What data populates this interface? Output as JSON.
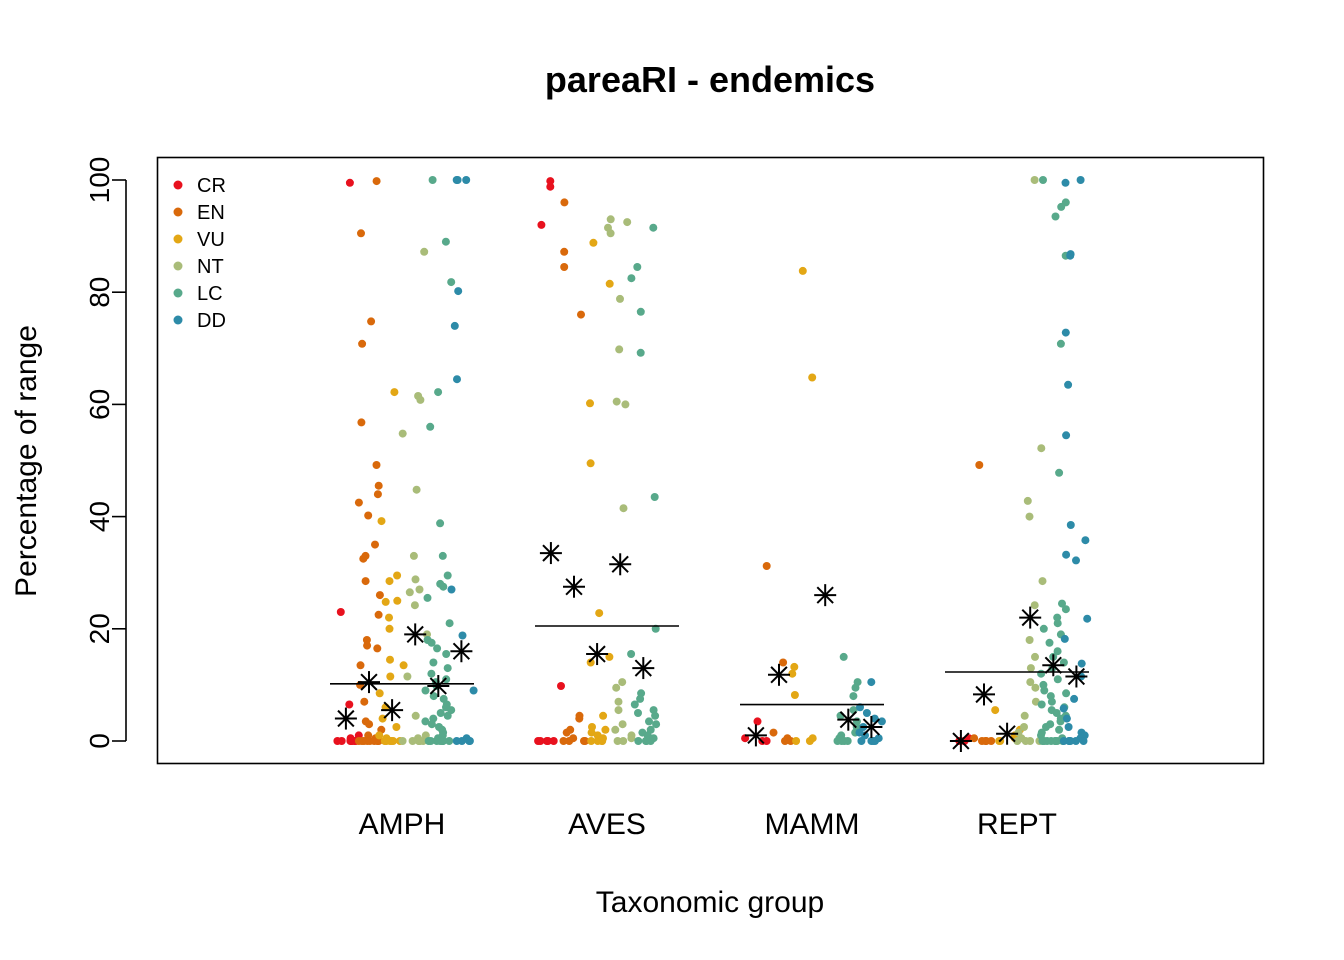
{
  "chart_data": {
    "type": "scatter",
    "title": "pareaRI - endemics",
    "xlabel": "Taxonomic group",
    "ylabel": "Percentage of range",
    "ylim": [
      0,
      100
    ],
    "yticks": [
      0,
      20,
      40,
      60,
      80,
      100
    ],
    "categories": [
      "AMPH",
      "AVES",
      "MAMM",
      "REPT"
    ],
    "legend": {
      "position": "top-left"
    },
    "grid": false,
    "series": [
      {
        "name": "CR",
        "color": "#E8111E",
        "offset": -0.34
      },
      {
        "name": "EN",
        "color": "#D9690B",
        "offset": -0.2
      },
      {
        "name": "VU",
        "color": "#E3A715",
        "offset": -0.06
      },
      {
        "name": "NT",
        "color": "#A9BC79",
        "offset": 0.08
      },
      {
        "name": "LC",
        "color": "#58A98B",
        "offset": 0.22
      },
      {
        "name": "DD",
        "color": "#2D8BA8",
        "offset": 0.36
      }
    ],
    "group_means": [
      10.2,
      20.5,
      6.5,
      12.3
    ],
    "category_medians": [
      [
        4.0,
        10.5,
        5.5,
        19.0,
        9.8,
        16.0
      ],
      [
        33.5,
        27.5,
        15.5,
        31.5,
        13.0,
        null
      ],
      [
        1.0,
        11.8,
        null,
        26.0,
        3.8,
        2.5
      ],
      [
        0.0,
        8.3,
        1.3,
        22.0,
        13.5,
        11.5
      ]
    ],
    "points": {
      "AMPH": {
        "CR": [
          99.5,
          23.0,
          6.5,
          1.0,
          0.5,
          0,
          0,
          0,
          0,
          0,
          0,
          0
        ],
        "EN": [
          99.8,
          90.5,
          74.8,
          70.8,
          56.8,
          49.2,
          45.5,
          44.0,
          42.5,
          40.2,
          35.0,
          33.0,
          32.5,
          28.5,
          26.0,
          22.5,
          18.0,
          17.0,
          16.5,
          13.5,
          10.0,
          7.0,
          3.5,
          3.0,
          2.0,
          1.0,
          0.5,
          0,
          0,
          0,
          0,
          0,
          0,
          0,
          0,
          0
        ],
        "VU": [
          62.2,
          39.2,
          29.5,
          28.5,
          25.0,
          24.8,
          22.0,
          20.0,
          14.5,
          13.5,
          11.5,
          8.5,
          6.0,
          4.0,
          2.5,
          1.0,
          0.5,
          0,
          0,
          0,
          0,
          0,
          0
        ],
        "NT": [
          87.2,
          61.5,
          60.8,
          54.8,
          44.8,
          33.0,
          28.8,
          27.0,
          26.5,
          24.2,
          19.0,
          11.5,
          4.5,
          1.0,
          0.5,
          0,
          0,
          0,
          0,
          0,
          0
        ],
        "LC": [
          100,
          89.0,
          81.8,
          62.2,
          56.0,
          38.8,
          33.0,
          29.5,
          28.0,
          27.5,
          25.5,
          21.0,
          18.0,
          17.5,
          16.5,
          15.5,
          14.0,
          13.0,
          12.0,
          11.0,
          10.5,
          9.8,
          9.0,
          8.0,
          7.5,
          6.5,
          6.0,
          5.5,
          5.0,
          4.5,
          4.0,
          3.5,
          3.0,
          2.5,
          2.0,
          1.5,
          1.0,
          0.5,
          0,
          0,
          0,
          0,
          0,
          0,
          0,
          0
        ],
        "DD": [
          100,
          100,
          100,
          80.2,
          74.0,
          64.5,
          27.0,
          18.8,
          9.0,
          0.5,
          0,
          0,
          0,
          0
        ]
      },
      "AVES": {
        "CR": [
          99.8,
          98.8,
          92.0,
          9.8,
          0,
          0,
          0,
          0,
          0
        ],
        "EN": [
          96.0,
          87.2,
          84.5,
          76.0,
          4.5,
          4.0,
          2.0,
          1.5,
          0.5,
          0,
          0,
          0,
          0
        ],
        "VU": [
          88.8,
          81.5,
          60.2,
          49.5,
          22.8,
          15.0,
          14.0,
          4.5,
          2.5,
          2.0,
          1.5,
          1.0,
          0.5,
          0,
          0,
          0,
          0
        ],
        "NT": [
          93.0,
          92.5,
          91.5,
          90.5,
          78.8,
          69.8,
          60.5,
          60.0,
          41.5,
          10.5,
          9.5,
          7.0,
          5.5,
          3.0,
          2.0,
          1.0,
          0.5,
          0,
          0
        ],
        "LC": [
          91.5,
          84.5,
          82.5,
          76.5,
          69.2,
          43.5,
          20.0,
          15.5,
          8.5,
          7.5,
          6.5,
          5.5,
          5.0,
          4.5,
          3.5,
          3.0,
          2.0,
          1.5,
          1.0,
          0.5,
          0,
          0,
          0,
          0
        ],
        "DD": []
      },
      "MAMM": {
        "CR": [
          3.5,
          0.5,
          0,
          0
        ],
        "EN": [
          31.2,
          14.0,
          1.5,
          0.5,
          0,
          0
        ],
        "VU": [
          83.8,
          64.8,
          13.2,
          12.0,
          8.2,
          0.5,
          0,
          0
        ],
        "NT": [],
        "LC": [
          15.0,
          10.5,
          9.5,
          8.0,
          5.5,
          4.5,
          3.5,
          2.5,
          1.5,
          1.0,
          0.5,
          0,
          0,
          0,
          0
        ],
        "DD": [
          10.5,
          6.0,
          5.0,
          4.0,
          3.5,
          2.5,
          1.5,
          1.0,
          0.5,
          0,
          0,
          0,
          0
        ]
      },
      "REPT": {
        "CR": [
          0.5,
          0,
          0,
          0
        ],
        "EN": [
          49.2,
          0.5,
          0,
          0,
          0,
          0
        ],
        "VU": [
          5.5,
          2.0,
          1.0,
          0.5,
          0,
          0
        ],
        "NT": [
          100,
          52.2,
          42.8,
          40.0,
          28.5,
          24.2,
          18.0,
          15.0,
          13.0,
          10.5,
          9.5,
          7.0,
          4.5,
          2.5,
          1.5,
          0.5,
          0,
          0,
          0,
          0
        ],
        "LC": [
          100,
          96.0,
          95.2,
          93.5,
          86.5,
          70.8,
          47.8,
          24.5,
          23.5,
          22.0,
          21.0,
          20.0,
          19.0,
          17.5,
          16.0,
          15.0,
          14.0,
          13.0,
          12.0,
          11.0,
          10.0,
          9.0,
          8.5,
          8.0,
          7.0,
          6.5,
          6.0,
          5.5,
          5.0,
          4.5,
          4.0,
          3.5,
          3.0,
          2.5,
          2.0,
          1.5,
          1.0,
          0.5,
          0,
          0,
          0,
          0,
          0,
          0,
          0,
          0
        ],
        "DD": [
          100,
          99.5,
          86.8,
          86.5,
          72.8,
          63.5,
          54.5,
          38.5,
          35.8,
          33.2,
          32.2,
          21.8,
          18.2,
          13.8,
          11.5,
          7.5,
          5.8,
          4.0,
          2.5,
          1.5,
          1.0,
          0.5,
          0,
          0,
          0,
          0,
          0,
          0
        ]
      }
    }
  }
}
